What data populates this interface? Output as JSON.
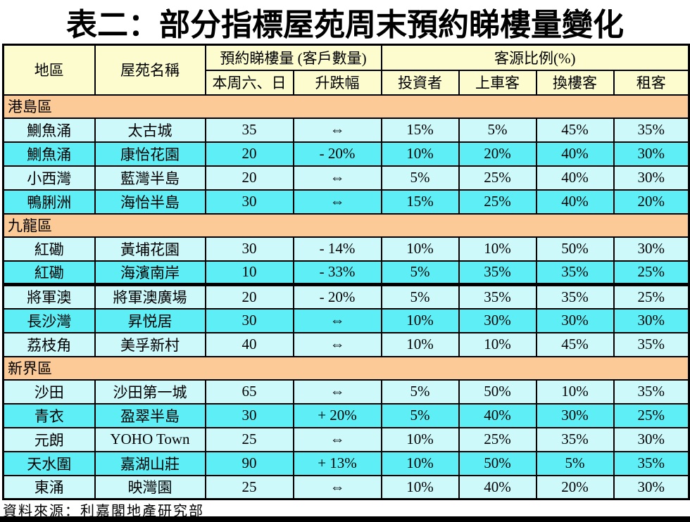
{
  "chart_data": {
    "type": "table",
    "title": "表二：部分指標屋苑周末預約睇樓量變化",
    "source": "資料來源：利嘉閣地產研究部",
    "header": {
      "district": "地區",
      "estate": "屋苑名稱",
      "bookings_group": "預約睇樓量 (客戶數量)",
      "sources_group": "客源比例(%)",
      "weekend": "本周六、日",
      "change": "升跌幅",
      "investor": "投資者",
      "first_time": "上車客",
      "upgrader": "換樓客",
      "tenant": "租客"
    },
    "sections": [
      {
        "name": "港島區",
        "rows": [
          {
            "district": "鰂魚涌",
            "estate": "太古城",
            "weekend": "35",
            "change": "⇔",
            "investor": "15%",
            "first_time": "5%",
            "upgrader": "45%",
            "tenant": "35%"
          },
          {
            "district": "鰂魚涌",
            "estate": "康怡花園",
            "weekend": "20",
            "change": "- 20%",
            "investor": "10%",
            "first_time": "20%",
            "upgrader": "40%",
            "tenant": "30%"
          },
          {
            "district": "小西灣",
            "estate": "藍灣半島",
            "weekend": "20",
            "change": "⇔",
            "investor": "5%",
            "first_time": "25%",
            "upgrader": "40%",
            "tenant": "30%"
          },
          {
            "district": "鴨脷洲",
            "estate": "海怡半島",
            "weekend": "30",
            "change": "⇔",
            "investor": "15%",
            "first_time": "25%",
            "upgrader": "40%",
            "tenant": "20%"
          }
        ]
      },
      {
        "name": "九龍區",
        "rows": [
          {
            "district": "紅磡",
            "estate": "黃埔花園",
            "weekend": "30",
            "change": "- 14%",
            "investor": "10%",
            "first_time": "10%",
            "upgrader": "50%",
            "tenant": "30%"
          },
          {
            "district": "紅磡",
            "estate": "海濱南岸",
            "weekend": "10",
            "change": "- 33%",
            "investor": "5%",
            "first_time": "35%",
            "upgrader": "35%",
            "tenant": "25%",
            "thick_bottom": true
          },
          {
            "district": "將軍澳",
            "estate": "將軍澳廣場",
            "weekend": "20",
            "change": "- 20%",
            "investor": "5%",
            "first_time": "35%",
            "upgrader": "35%",
            "tenant": "25%"
          },
          {
            "district": "長沙灣",
            "estate": "昇悦居",
            "weekend": "30",
            "change": "⇔",
            "investor": "10%",
            "first_time": "30%",
            "upgrader": "30%",
            "tenant": "30%"
          },
          {
            "district": "荔枝角",
            "estate": "美孚新村",
            "weekend": "40",
            "change": "⇔",
            "investor": "10%",
            "first_time": "10%",
            "upgrader": "45%",
            "tenant": "35%"
          }
        ]
      },
      {
        "name": "新界區",
        "rows": [
          {
            "district": "沙田",
            "estate": "沙田第一城",
            "weekend": "65",
            "change": "⇔",
            "investor": "5%",
            "first_time": "50%",
            "upgrader": "10%",
            "tenant": "35%"
          },
          {
            "district": "青衣",
            "estate": "盈翠半島",
            "weekend": "30",
            "change": "+ 20%",
            "investor": "5%",
            "first_time": "40%",
            "upgrader": "30%",
            "tenant": "25%"
          },
          {
            "district": "元朗",
            "estate": "YOHO Town",
            "weekend": "25",
            "change": "⇔",
            "investor": "10%",
            "first_time": "25%",
            "upgrader": "35%",
            "tenant": "30%"
          },
          {
            "district": "天水圍",
            "estate": "嘉湖山莊",
            "weekend": "90",
            "change": "+ 13%",
            "investor": "10%",
            "first_time": "50%",
            "upgrader": "5%",
            "tenant": "35%"
          },
          {
            "district": "東涌",
            "estate": "映灣園",
            "weekend": "25",
            "change": "⇔",
            "investor": "10%",
            "first_time": "40%",
            "upgrader": "20%",
            "tenant": "30%"
          }
        ]
      }
    ]
  },
  "colors": {
    "header_bg": "#FCFCCF",
    "section_bg": "#FBCA96",
    "row_light": "#CDF9FB",
    "row_cyan": "#5EEEF5",
    "border": "#000000",
    "bottom_bar": "#000000"
  }
}
